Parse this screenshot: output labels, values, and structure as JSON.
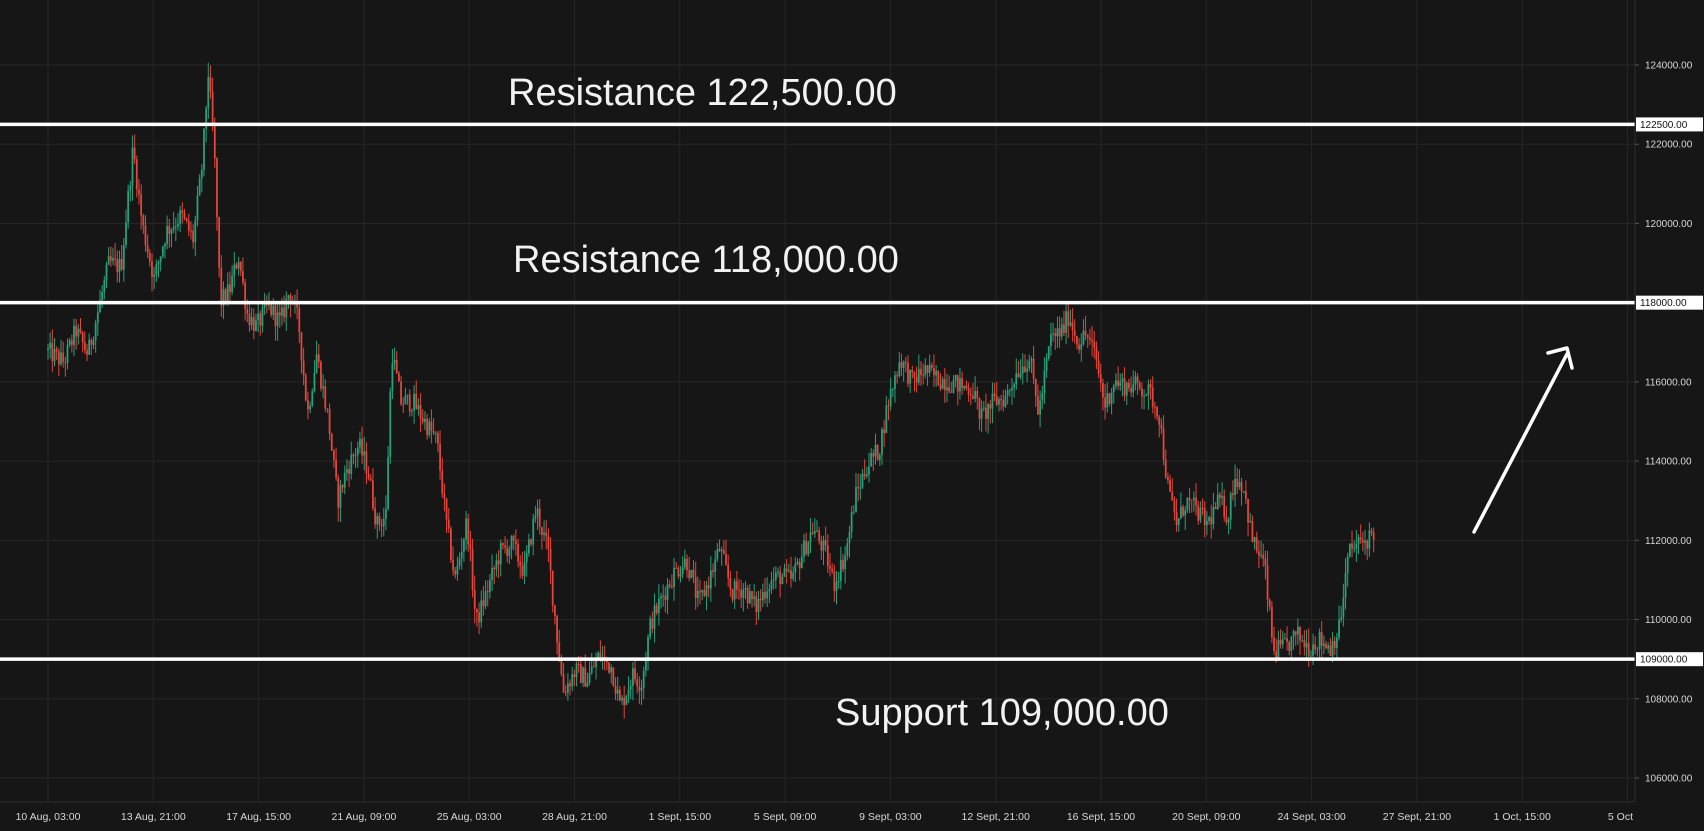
{
  "colors": {
    "background": "#161616",
    "grid": "#262626",
    "axis_text": "#d7d7d7",
    "up_candle": "#26a17b",
    "down_candle": "#e5453a",
    "level_line": "#ffffff",
    "annotation": "#f2f2f2"
  },
  "chart_data": {
    "type": "candlestick",
    "title": "",
    "xlabel": "",
    "ylabel": "",
    "ylim": [
      105500,
      125000
    ],
    "x_ticks": [
      "10 Aug, 03:00",
      "13 Aug, 21:00",
      "17 Aug, 15:00",
      "21 Aug, 09:00",
      "25 Aug, 03:00",
      "28 Aug, 21:00",
      "1 Sept, 15:00",
      "5 Sept, 09:00",
      "9 Sept, 03:00",
      "12 Sept, 21:00",
      "16 Sept, 15:00",
      "20 Sept, 09:00",
      "24 Sept, 03:00",
      "27 Sept, 21:00",
      "1 Oct, 15:00",
      "5 Oct"
    ],
    "y_ticks": [
      "106000.00",
      "108000.00",
      "110000.00",
      "112000.00",
      "114000.00",
      "116000.00",
      "120000.00",
      "122000.00",
      "124000.00"
    ],
    "levels": [
      {
        "value": 122500,
        "tag": "122500.00",
        "label": "Resistance 122,500.00"
      },
      {
        "value": 118000,
        "tag": "118000.00",
        "label": "Resistance 118,000.00"
      },
      {
        "value": 109000,
        "tag": "109000.00",
        "label": "Support 109,000.00"
      }
    ],
    "price_path": [
      {
        "t": 0,
        "p": 116800
      },
      {
        "t": 0.6,
        "p": 116500
      },
      {
        "t": 1.0,
        "p": 117300
      },
      {
        "t": 1.4,
        "p": 116700
      },
      {
        "t": 1.8,
        "p": 118000
      },
      {
        "t": 2.1,
        "p": 119000
      },
      {
        "t": 2.5,
        "p": 118900
      },
      {
        "t": 2.9,
        "p": 121900
      },
      {
        "t": 3.2,
        "p": 120000
      },
      {
        "t": 3.6,
        "p": 118600
      },
      {
        "t": 4.0,
        "p": 119800
      },
      {
        "t": 4.5,
        "p": 120200
      },
      {
        "t": 4.9,
        "p": 119600
      },
      {
        "t": 5.2,
        "p": 121500
      },
      {
        "t": 5.4,
        "p": 123800
      },
      {
        "t": 5.6,
        "p": 121800
      },
      {
        "t": 5.8,
        "p": 118000
      },
      {
        "t": 6.1,
        "p": 118300
      },
      {
        "t": 6.4,
        "p": 119200
      },
      {
        "t": 6.7,
        "p": 117700
      },
      {
        "t": 7.0,
        "p": 117400
      },
      {
        "t": 7.4,
        "p": 117900
      },
      {
        "t": 7.8,
        "p": 117500
      },
      {
        "t": 8.1,
        "p": 118300
      },
      {
        "t": 8.4,
        "p": 117500
      },
      {
        "t": 8.7,
        "p": 115200
      },
      {
        "t": 9.0,
        "p": 116700
      },
      {
        "t": 9.4,
        "p": 115000
      },
      {
        "t": 9.7,
        "p": 113000
      },
      {
        "t": 10.0,
        "p": 113800
      },
      {
        "t": 10.4,
        "p": 114400
      },
      {
        "t": 10.7,
        "p": 113800
      },
      {
        "t": 11.0,
        "p": 112400
      },
      {
        "t": 11.3,
        "p": 112600
      },
      {
        "t": 11.5,
        "p": 116800
      },
      {
        "t": 11.8,
        "p": 115500
      },
      {
        "t": 12.2,
        "p": 115500
      },
      {
        "t": 12.6,
        "p": 115000
      },
      {
        "t": 13.0,
        "p": 114500
      },
      {
        "t": 13.3,
        "p": 112500
      },
      {
        "t": 13.6,
        "p": 111000
      },
      {
        "t": 14.0,
        "p": 112500
      },
      {
        "t": 14.3,
        "p": 109900
      },
      {
        "t": 14.7,
        "p": 110800
      },
      {
        "t": 15.1,
        "p": 111700
      },
      {
        "t": 15.5,
        "p": 111900
      },
      {
        "t": 15.9,
        "p": 111200
      },
      {
        "t": 16.3,
        "p": 112800
      },
      {
        "t": 16.7,
        "p": 111700
      },
      {
        "t": 17.0,
        "p": 109500
      },
      {
        "t": 17.2,
        "p": 108200
      },
      {
        "t": 17.6,
        "p": 108700
      },
      {
        "t": 18.0,
        "p": 108500
      },
      {
        "t": 18.4,
        "p": 109100
      },
      {
        "t": 18.8,
        "p": 108800
      },
      {
        "t": 19.1,
        "p": 107800
      },
      {
        "t": 19.5,
        "p": 108600
      },
      {
        "t": 19.8,
        "p": 108400
      },
      {
        "t": 20.1,
        "p": 109900
      },
      {
        "t": 20.5,
        "p": 110600
      },
      {
        "t": 20.9,
        "p": 111200
      },
      {
        "t": 21.3,
        "p": 111500
      },
      {
        "t": 21.7,
        "p": 110400
      },
      {
        "t": 22.0,
        "p": 110900
      },
      {
        "t": 22.4,
        "p": 111800
      },
      {
        "t": 22.8,
        "p": 110700
      },
      {
        "t": 23.2,
        "p": 110800
      },
      {
        "t": 23.6,
        "p": 110300
      },
      {
        "t": 24.0,
        "p": 110900
      },
      {
        "t": 24.4,
        "p": 111100
      },
      {
        "t": 24.8,
        "p": 111000
      },
      {
        "t": 25.1,
        "p": 111600
      },
      {
        "t": 25.5,
        "p": 112300
      },
      {
        "t": 25.9,
        "p": 111700
      },
      {
        "t": 26.2,
        "p": 110900
      },
      {
        "t": 26.6,
        "p": 111700
      },
      {
        "t": 26.9,
        "p": 113100
      },
      {
        "t": 27.3,
        "p": 113900
      },
      {
        "t": 27.7,
        "p": 114300
      },
      {
        "t": 28.0,
        "p": 115500
      },
      {
        "t": 28.4,
        "p": 116600
      },
      {
        "t": 28.8,
        "p": 116000
      },
      {
        "t": 29.2,
        "p": 116300
      },
      {
        "t": 29.6,
        "p": 116100
      },
      {
        "t": 30.0,
        "p": 116000
      },
      {
        "t": 30.4,
        "p": 115900
      },
      {
        "t": 30.8,
        "p": 115800
      },
      {
        "t": 31.1,
        "p": 115100
      },
      {
        "t": 31.5,
        "p": 115500
      },
      {
        "t": 31.9,
        "p": 115600
      },
      {
        "t": 32.3,
        "p": 116300
      },
      {
        "t": 32.7,
        "p": 116600
      },
      {
        "t": 33.0,
        "p": 115200
      },
      {
        "t": 33.4,
        "p": 117100
      },
      {
        "t": 33.8,
        "p": 117300
      },
      {
        "t": 34.0,
        "p": 117700
      },
      {
        "t": 34.3,
        "p": 117000
      },
      {
        "t": 34.6,
        "p": 117200
      },
      {
        "t": 34.9,
        "p": 116600
      },
      {
        "t": 35.2,
        "p": 115400
      },
      {
        "t": 35.5,
        "p": 116000
      },
      {
        "t": 35.9,
        "p": 115900
      },
      {
        "t": 36.3,
        "p": 115900
      },
      {
        "t": 36.7,
        "p": 115700
      },
      {
        "t": 37.0,
        "p": 115200
      },
      {
        "t": 37.3,
        "p": 113300
      },
      {
        "t": 37.6,
        "p": 112400
      },
      {
        "t": 37.9,
        "p": 113000
      },
      {
        "t": 38.2,
        "p": 112800
      },
      {
        "t": 38.6,
        "p": 112400
      },
      {
        "t": 39.0,
        "p": 113000
      },
      {
        "t": 39.3,
        "p": 112600
      },
      {
        "t": 39.5,
        "p": 113600
      },
      {
        "t": 39.8,
        "p": 113400
      },
      {
        "t": 40.1,
        "p": 112000
      },
      {
        "t": 40.5,
        "p": 111400
      },
      {
        "t": 40.8,
        "p": 109200
      },
      {
        "t": 41.2,
        "p": 109300
      },
      {
        "t": 41.6,
        "p": 109600
      },
      {
        "t": 42.0,
        "p": 109300
      },
      {
        "t": 42.3,
        "p": 109500
      },
      {
        "t": 42.7,
        "p": 109300
      },
      {
        "t": 43.0,
        "p": 109800
      },
      {
        "t": 43.3,
        "p": 111700
      },
      {
        "t": 43.6,
        "p": 111900
      },
      {
        "t": 43.9,
        "p": 112000
      },
      {
        "t": 44.1,
        "p": 112200
      }
    ]
  }
}
